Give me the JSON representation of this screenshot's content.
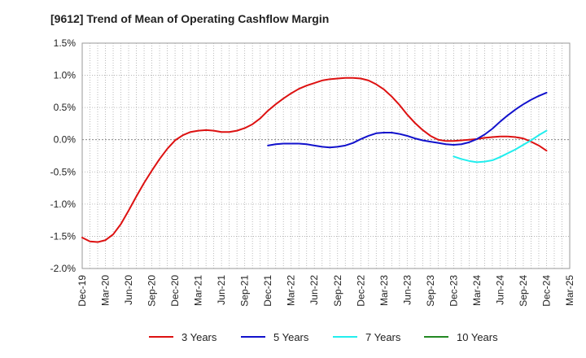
{
  "title": "[9612]  Trend of Mean of Operating Cashflow Margin",
  "chart_data": {
    "type": "line",
    "title": "[9612]  Trend of Mean of Operating Cashflow Margin",
    "xlabel": "",
    "ylabel": "",
    "ylim": [
      -2.0,
      1.5
    ],
    "y_ticks": [
      "1.5%",
      "1.0%",
      "0.5%",
      "0.0%",
      "-0.5%",
      "-1.0%",
      "-1.5%",
      "-2.0%"
    ],
    "y_tick_values": [
      1.5,
      1.0,
      0.5,
      0.0,
      -0.5,
      -1.0,
      -1.5,
      -2.0
    ],
    "x_ticks": [
      "Dec-19",
      "Mar-20",
      "Jun-20",
      "Sep-20",
      "Dec-20",
      "Mar-21",
      "Jun-21",
      "Sep-21",
      "Dec-21",
      "Mar-22",
      "Jun-22",
      "Sep-22",
      "Dec-22",
      "Mar-23",
      "Jun-23",
      "Sep-23",
      "Dec-23",
      "Mar-24",
      "Jun-24",
      "Sep-24",
      "Dec-24",
      "Mar-25"
    ],
    "x_range": [
      "2019-12",
      "2025-03"
    ],
    "grid": true,
    "zero_line": true,
    "legend_position": "bottom",
    "series": [
      {
        "name": "3 Years",
        "color": "#dd1111",
        "x": [
          "2019-12",
          "2020-01",
          "2020-02",
          "2020-03",
          "2020-04",
          "2020-05",
          "2020-06",
          "2020-07",
          "2020-08",
          "2020-09",
          "2020-10",
          "2020-11",
          "2020-12",
          "2021-01",
          "2021-02",
          "2021-03",
          "2021-04",
          "2021-05",
          "2021-06",
          "2021-07",
          "2021-08",
          "2021-09",
          "2021-10",
          "2021-11",
          "2021-12",
          "2022-01",
          "2022-02",
          "2022-03",
          "2022-04",
          "2022-05",
          "2022-06",
          "2022-07",
          "2022-08",
          "2022-09",
          "2022-10",
          "2022-11",
          "2022-12",
          "2023-01",
          "2023-02",
          "2023-03",
          "2023-04",
          "2023-05",
          "2023-06",
          "2023-07",
          "2023-08",
          "2023-09",
          "2023-10",
          "2023-11",
          "2023-12",
          "2024-01",
          "2024-02",
          "2024-03",
          "2024-04",
          "2024-05",
          "2024-06",
          "2024-07",
          "2024-08",
          "2024-09",
          "2024-10",
          "2024-11",
          "2024-12"
        ],
        "values": [
          -1.52,
          -1.58,
          -1.59,
          -1.56,
          -1.47,
          -1.31,
          -1.1,
          -0.88,
          -0.67,
          -0.48,
          -0.3,
          -0.14,
          -0.01,
          0.07,
          0.12,
          0.14,
          0.15,
          0.14,
          0.12,
          0.12,
          0.14,
          0.18,
          0.24,
          0.33,
          0.45,
          0.55,
          0.64,
          0.72,
          0.79,
          0.84,
          0.88,
          0.92,
          0.94,
          0.95,
          0.96,
          0.96,
          0.95,
          0.92,
          0.86,
          0.78,
          0.67,
          0.54,
          0.39,
          0.26,
          0.15,
          0.06,
          0.0,
          -0.02,
          -0.02,
          -0.01,
          0.0,
          0.01,
          0.03,
          0.04,
          0.05,
          0.05,
          0.04,
          0.02,
          -0.03,
          -0.09,
          -0.17
        ]
      },
      {
        "name": "5 Years",
        "color": "#1111cc",
        "x": [
          "2021-12",
          "2022-01",
          "2022-02",
          "2022-03",
          "2022-04",
          "2022-05",
          "2022-06",
          "2022-07",
          "2022-08",
          "2022-09",
          "2022-10",
          "2022-11",
          "2022-12",
          "2023-01",
          "2023-02",
          "2023-03",
          "2023-04",
          "2023-05",
          "2023-06",
          "2023-07",
          "2023-08",
          "2023-09",
          "2023-10",
          "2023-11",
          "2023-12",
          "2024-01",
          "2024-02",
          "2024-03",
          "2024-04",
          "2024-05",
          "2024-06",
          "2024-07",
          "2024-08",
          "2024-09",
          "2024-10",
          "2024-11",
          "2024-12"
        ],
        "values": [
          -0.09,
          -0.07,
          -0.06,
          -0.06,
          -0.06,
          -0.07,
          -0.09,
          -0.11,
          -0.12,
          -0.11,
          -0.09,
          -0.05,
          0.01,
          0.06,
          0.1,
          0.11,
          0.11,
          0.09,
          0.06,
          0.02,
          -0.01,
          -0.03,
          -0.05,
          -0.07,
          -0.08,
          -0.07,
          -0.04,
          0.01,
          0.08,
          0.17,
          0.28,
          0.38,
          0.47,
          0.55,
          0.62,
          0.68,
          0.73
        ]
      },
      {
        "name": "7 Years",
        "color": "#22eeee",
        "x": [
          "2023-12",
          "2024-01",
          "2024-02",
          "2024-03",
          "2024-04",
          "2024-05",
          "2024-06",
          "2024-07",
          "2024-08",
          "2024-09",
          "2024-10",
          "2024-11",
          "2024-12"
        ],
        "values": [
          -0.26,
          -0.3,
          -0.33,
          -0.35,
          -0.34,
          -0.32,
          -0.27,
          -0.21,
          -0.15,
          -0.08,
          -0.01,
          0.07,
          0.14
        ]
      },
      {
        "name": "10 Years",
        "color": "#228822",
        "x": [],
        "values": []
      }
    ]
  }
}
